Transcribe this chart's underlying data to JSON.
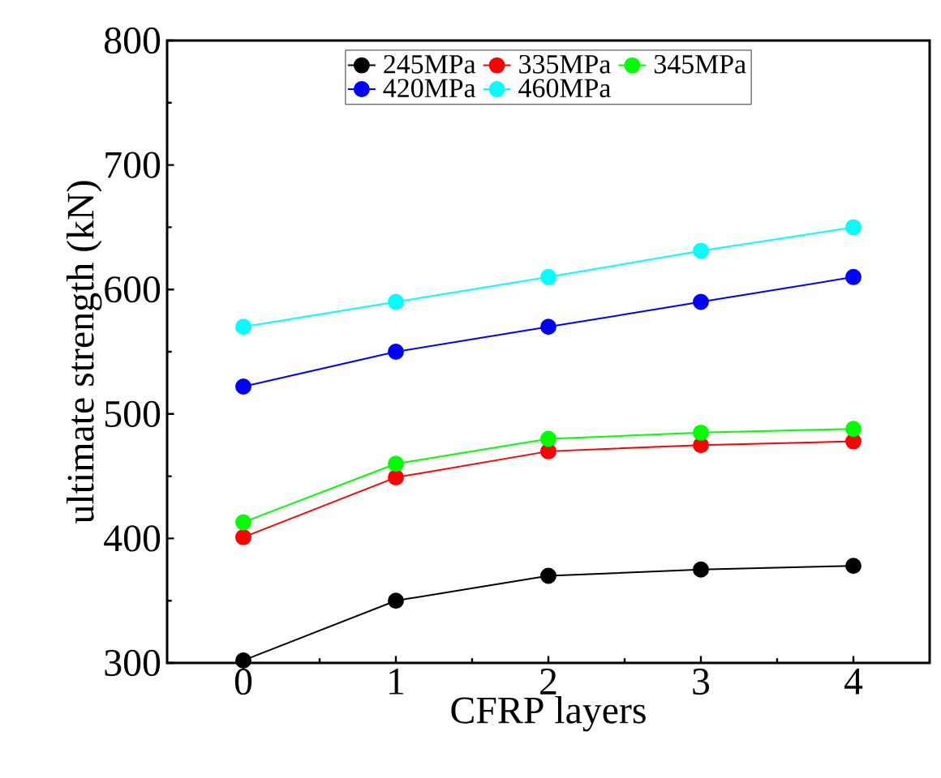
{
  "chart_data": {
    "type": "line",
    "xlabel": "CFRP layers",
    "ylabel": "ultimate strength (kN)",
    "x": [
      0,
      1,
      2,
      3,
      4
    ],
    "series": [
      {
        "name": "245MPa",
        "color": "#000000",
        "values": [
          302,
          350,
          370,
          375,
          378
        ]
      },
      {
        "name": "335MPa",
        "color": "#ff0000",
        "values": [
          401,
          449,
          470,
          475,
          478
        ]
      },
      {
        "name": "345MPa",
        "color": "#00ff00",
        "values": [
          413,
          460,
          480,
          485,
          488
        ]
      },
      {
        "name": "420MPa",
        "color": "#0000ff",
        "values": [
          522,
          550,
          570,
          590,
          610
        ]
      },
      {
        "name": "460MPa",
        "color": "#00ffff",
        "values": [
          570,
          590,
          610,
          631,
          650
        ]
      }
    ],
    "xlim": [
      -0.5,
      4.5
    ],
    "xticks": [
      0,
      1,
      2,
      3,
      4
    ],
    "ylim": [
      300,
      800
    ],
    "yticks": [
      300,
      400,
      500,
      600,
      700,
      800
    ],
    "grid": false,
    "legend": "top",
    "marker": "circle",
    "line_style": "solid"
  }
}
